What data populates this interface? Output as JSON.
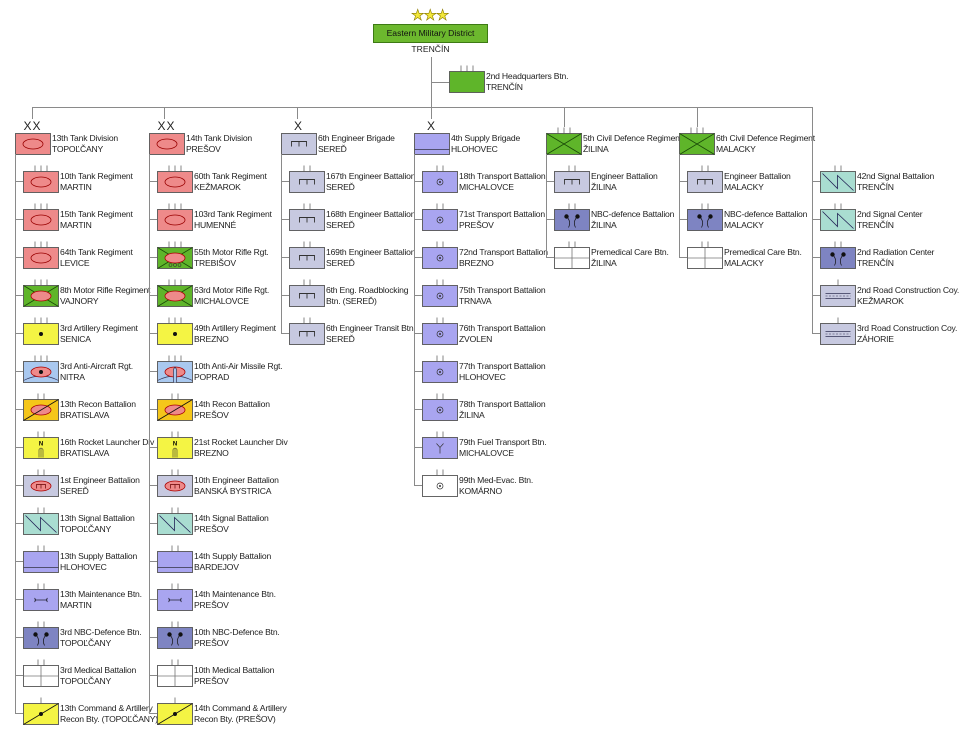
{
  "colors": {
    "tank": "#ee8a8a",
    "green": "#5fb52a",
    "artillery": "#f4f444",
    "air_defence": "#a9c8ef",
    "recon": "#f5c61a",
    "engineer": "#c7c9e0",
    "signal": "#a9ddd1",
    "supply": "#a9a5f0",
    "nbc": "#7e84c2",
    "medical": "#ffffff",
    "line": "#8a8a8a"
  },
  "hq": {
    "stars": "★★★",
    "name": "Eastern Military District",
    "location": "TRENČÍN"
  },
  "hq_battalion": {
    "name": "2nd Headquarters Btn.",
    "location": "TRENČÍN",
    "symbol": "headquarters",
    "echelon": "|||"
  },
  "columns": [
    {
      "head": {
        "echelon": "XX",
        "symbol": "tank",
        "name": "13th Tank Division",
        "location": "TOPOĽČANY"
      },
      "units": [
        {
          "symbol": "tank",
          "echelon": "|||",
          "name": "10th Tank Regiment",
          "location": "MARTIN"
        },
        {
          "symbol": "tank",
          "echelon": "|||",
          "name": "15th Tank Regiment",
          "location": "MARTIN"
        },
        {
          "symbol": "tank",
          "echelon": "|||",
          "name": "64th Tank Regiment",
          "location": "LEVICE"
        },
        {
          "symbol": "motor-rifle",
          "echelon": "|||",
          "name": "8th Motor Rifle Regiment",
          "location": "VAJNORY"
        },
        {
          "symbol": "artillery",
          "echelon": "|||",
          "name": "3rd Artillery Regiment",
          "location": "SENICA"
        },
        {
          "symbol": "anti-aircraft",
          "echelon": "|||",
          "name": "3rd Anti-Aircraft Rgt.",
          "location": "NITRA"
        },
        {
          "symbol": "recon",
          "echelon": "||",
          "name": "13th Recon Battalion",
          "location": "BRATISLAVA"
        },
        {
          "symbol": "rocket",
          "echelon": "||",
          "name": "16th Rocket Launcher Div",
          "location": "BRATISLAVA"
        },
        {
          "symbol": "armored-engineer",
          "echelon": "||",
          "name": "1st Engineer Battalion",
          "location": "SEREĎ"
        },
        {
          "symbol": "signal",
          "echelon": "||",
          "name": "13th Signal Battalion",
          "location": "TOPOĽČANY"
        },
        {
          "symbol": "supply",
          "echelon": "||",
          "name": "13th Supply Battalion",
          "location": "HLOHOVEC"
        },
        {
          "symbol": "maintenance",
          "echelon": "||",
          "name": "13th Maintenance Btn.",
          "location": "MARTIN"
        },
        {
          "symbol": "nbc",
          "echelon": "||",
          "name": "3rd NBC-Defence Btn.",
          "location": "TOPOĽČANY"
        },
        {
          "symbol": "medical",
          "echelon": "||",
          "name": "3rd Medical Battalion",
          "location": "TOPOĽČANY"
        },
        {
          "symbol": "artillery-recon",
          "echelon": "|",
          "name": "13th Command & Artillery",
          "location": "Recon Bty. (TOPOĽČANY)"
        }
      ]
    },
    {
      "head": {
        "echelon": "XX",
        "symbol": "tank",
        "name": "14th Tank Division",
        "location": "PREŠOV"
      },
      "units": [
        {
          "symbol": "tank",
          "echelon": "|||",
          "name": "60th Tank Regiment",
          "location": "KEŽMAROK"
        },
        {
          "symbol": "tank",
          "echelon": "|||",
          "name": "103rd Tank Regiment",
          "location": "HUMENNÉ"
        },
        {
          "symbol": "motor-rifle-wheeled",
          "echelon": "|||",
          "name": "55th Motor Rifle Rgt.",
          "location": "TREBIŠOV"
        },
        {
          "symbol": "motor-rifle",
          "echelon": "|||",
          "name": "63rd Motor Rifle Rgt.",
          "location": "MICHALOVCE"
        },
        {
          "symbol": "artillery",
          "echelon": "|||",
          "name": "49th Artillery Regiment",
          "location": "BREZNO"
        },
        {
          "symbol": "anti-air-missile",
          "echelon": "|||",
          "name": "10th Anti-Air Missile Rgt.",
          "location": "POPRAD"
        },
        {
          "symbol": "recon",
          "echelon": "||",
          "name": "14th Recon Battalion",
          "location": "PREŠOV"
        },
        {
          "symbol": "rocket",
          "echelon": "||",
          "name": "21st Rocket Launcher Div",
          "location": "BREZNO"
        },
        {
          "symbol": "armored-engineer",
          "echelon": "||",
          "name": "10th Engineer Battalion",
          "location": "BANSKÁ BYSTRICA"
        },
        {
          "symbol": "signal",
          "echelon": "||",
          "name": "14th Signal Battalion",
          "location": "PREŠOV"
        },
        {
          "symbol": "supply",
          "echelon": "||",
          "name": "14th Supply Battalion",
          "location": "BARDEJOV"
        },
        {
          "symbol": "maintenance",
          "echelon": "||",
          "name": "14th Maintenance Btn.",
          "location": "PREŠOV"
        },
        {
          "symbol": "nbc",
          "echelon": "||",
          "name": "10th NBC-Defence Btn.",
          "location": "PREŠOV"
        },
        {
          "symbol": "medical",
          "echelon": "||",
          "name": "10th Medical Battalion",
          "location": "PREŠOV"
        },
        {
          "symbol": "artillery-recon",
          "echelon": "|",
          "name": "14th Command & Artillery",
          "location": "Recon Bty. (PREŠOV)"
        }
      ]
    },
    {
      "head": {
        "echelon": "X",
        "symbol": "engineer",
        "name": "6th Engineer Brigade",
        "location": "SEREĎ"
      },
      "units": [
        {
          "symbol": "engineer",
          "echelon": "||",
          "name": "167th Engineer Battalion",
          "location": "SEREĎ"
        },
        {
          "symbol": "engineer",
          "echelon": "||",
          "name": "168th Engineer Battalion",
          "location": "SEREĎ"
        },
        {
          "symbol": "engineer",
          "echelon": "||",
          "name": "169th Engineer Battalion",
          "location": "SEREĎ"
        },
        {
          "symbol": "engineer",
          "echelon": "||",
          "name": "6th Eng. Roadblocking",
          "location": "Btn. (SEREĎ)"
        },
        {
          "symbol": "engineer",
          "echelon": "||",
          "name": "6th Engineer Transit Btn.",
          "location": "SEREĎ"
        }
      ]
    },
    {
      "head": {
        "echelon": "X",
        "symbol": "supply",
        "name": "4th Supply Brigade",
        "location": "HLOHOVEC"
      },
      "units": [
        {
          "symbol": "transport",
          "echelon": "||",
          "name": "18th Transport Battalion",
          "location": "MICHALOVCE"
        },
        {
          "symbol": "transport",
          "echelon": "||",
          "name": "71st Transport Battalion",
          "location": "PREŠOV"
        },
        {
          "symbol": "transport",
          "echelon": "||",
          "name": "72nd Transport Battalion",
          "location": "BREZNO"
        },
        {
          "symbol": "transport",
          "echelon": "||",
          "name": "75th Transport Battalion",
          "location": "TRNAVA"
        },
        {
          "symbol": "transport",
          "echelon": "||",
          "name": "76th Transport Battalion",
          "location": "ZVOLEN"
        },
        {
          "symbol": "transport",
          "echelon": "||",
          "name": "77th Transport Battalion",
          "location": "HLOHOVEC"
        },
        {
          "symbol": "transport",
          "echelon": "||",
          "name": "78th Transport Battalion",
          "location": "ŽILINA"
        },
        {
          "symbol": "fuel-transport",
          "echelon": "||",
          "name": "79th Fuel Transport Btn.",
          "location": "MICHALOVCE"
        },
        {
          "symbol": "medevac",
          "echelon": "||",
          "name": "99th Med-Evac. Btn.",
          "location": "KOMÁRNO"
        }
      ]
    },
    {
      "head": {
        "echelon": "|||",
        "symbol": "civil-defence",
        "name": "5th Civil Defence Regiment",
        "location": "ŽILINA"
      },
      "units": [
        {
          "symbol": "engineer",
          "echelon": "||",
          "name": "Engineer Battalion",
          "location": "ŽILINA"
        },
        {
          "symbol": "nbc",
          "echelon": "||",
          "name": "NBC-defence Battalion",
          "location": "ŽILINA"
        },
        {
          "symbol": "medical",
          "echelon": "||",
          "name": "Premedical Care Btn.",
          "location": "ŽILINA"
        }
      ]
    },
    {
      "head": {
        "echelon": "|||",
        "symbol": "civil-defence",
        "name": "6th Civil Defence Regiment",
        "location": "MALACKY"
      },
      "units": [
        {
          "symbol": "engineer",
          "echelon": "||",
          "name": "Engineer Battalion",
          "location": "MALACKY"
        },
        {
          "symbol": "nbc",
          "echelon": "||",
          "name": "NBC-defence Battalion",
          "location": "MALACKY"
        },
        {
          "symbol": "medical",
          "echelon": "||",
          "name": "Premedical Care Btn.",
          "location": "MALACKY"
        }
      ]
    },
    {
      "head": null,
      "units": [
        {
          "symbol": "signal",
          "echelon": "||",
          "name": "42nd Signal Battalion",
          "location": "TRENČÍN"
        },
        {
          "symbol": "signal",
          "echelon": "||",
          "name": "2nd Signal Center",
          "location": "TRENČÍN"
        },
        {
          "symbol": "nbc",
          "echelon": "||",
          "name": "2nd Radiation Center",
          "location": "TRENČÍN"
        },
        {
          "symbol": "road-construction",
          "echelon": "|",
          "name": "2nd Road Construction Coy.",
          "location": "KEŽMAROK"
        },
        {
          "symbol": "road-construction",
          "echelon": "|",
          "name": "3rd Road Construction Coy.",
          "location": "ZÁHORIE"
        }
      ]
    }
  ]
}
